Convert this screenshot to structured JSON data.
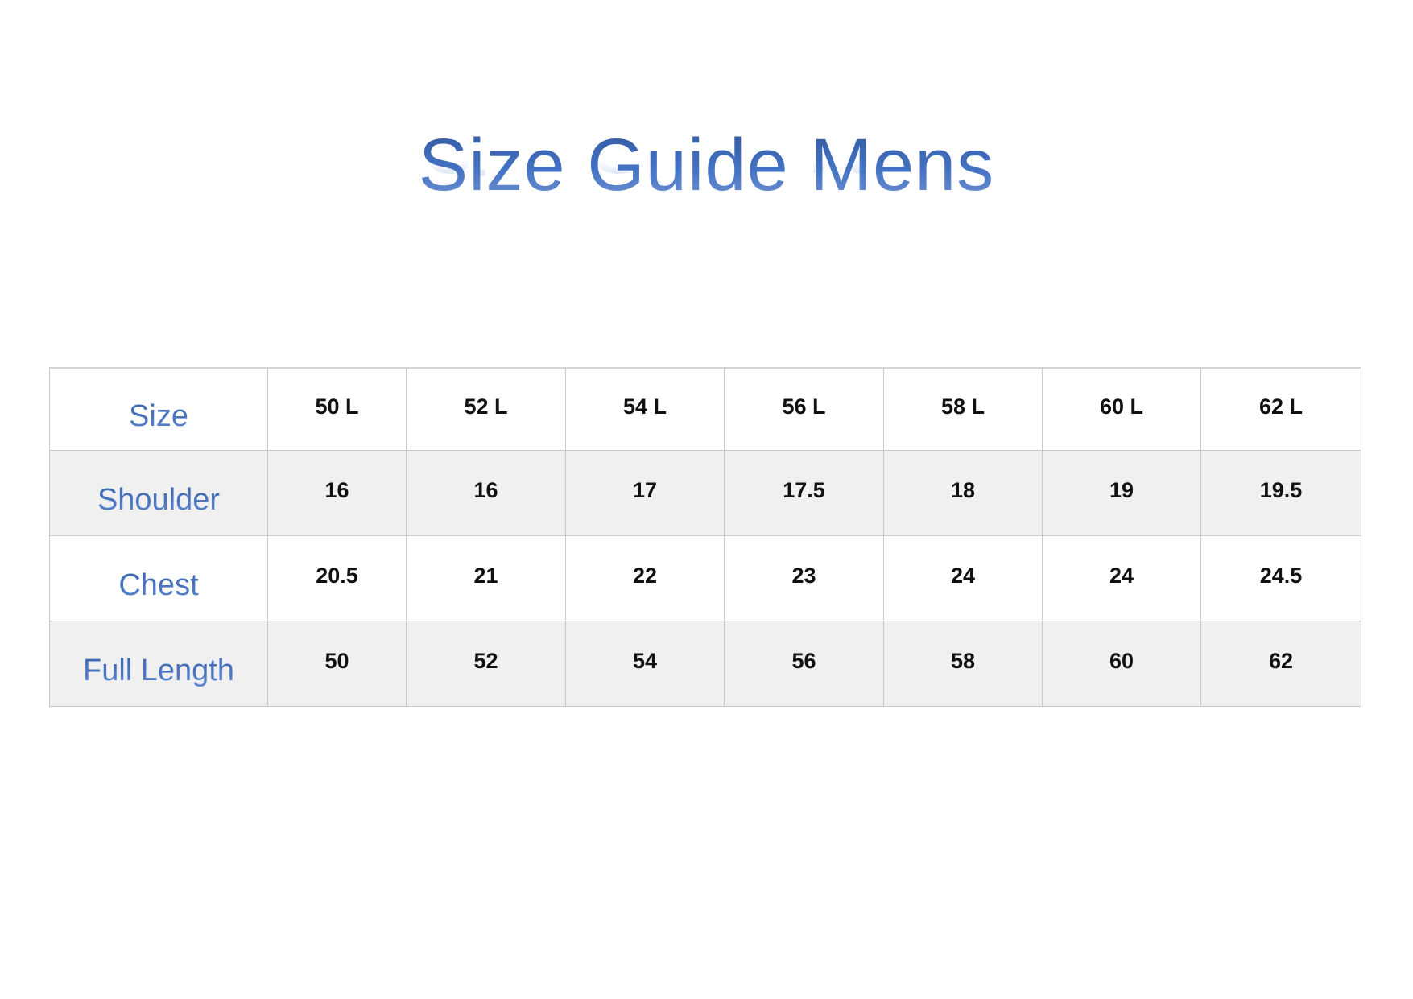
{
  "title": "Size Guide Mens",
  "colors": {
    "title": "#4472c4",
    "row_alt": "#f0f0f0",
    "border": "#c8c8c8"
  },
  "table": {
    "header": {
      "label": "Size",
      "values": [
        "50 L",
        "52 L",
        "54 L",
        "56 L",
        "58 L",
        "60 L",
        "62 L"
      ]
    },
    "rows": [
      {
        "label": "Shoulder",
        "values": [
          "16",
          "16",
          "17",
          "17.5",
          "18",
          "19",
          "19.5"
        ]
      },
      {
        "label": "Chest",
        "values": [
          "20.5",
          "21",
          "22",
          "23",
          "24",
          "24",
          "24.5"
        ]
      },
      {
        "label": "Full Length",
        "values": [
          "50",
          "52",
          "54",
          "56",
          "58",
          "60",
          "62"
        ]
      }
    ]
  }
}
